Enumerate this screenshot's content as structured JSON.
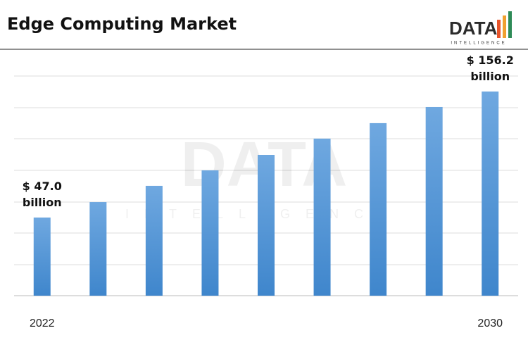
{
  "chart_data": {
    "type": "bar",
    "title": "Edge Computing Market",
    "logo": {
      "text": "DATA",
      "subtext": "INTELLIGENCE"
    },
    "categories": [
      "2022",
      null,
      null,
      null,
      null,
      null,
      null,
      null,
      "2030"
    ],
    "values": [
      47.0,
      60.4,
      74.5,
      87.9,
      101.3,
      115.4,
      128.8,
      142.8,
      156.2
    ],
    "value_labels": [
      "$ 47.0 billion",
      null,
      null,
      null,
      null,
      null,
      null,
      null,
      "$ 156.2 billion"
    ],
    "color": "#4a90d9",
    "ylim": [
      -20.7,
      174.5
    ]
  }
}
